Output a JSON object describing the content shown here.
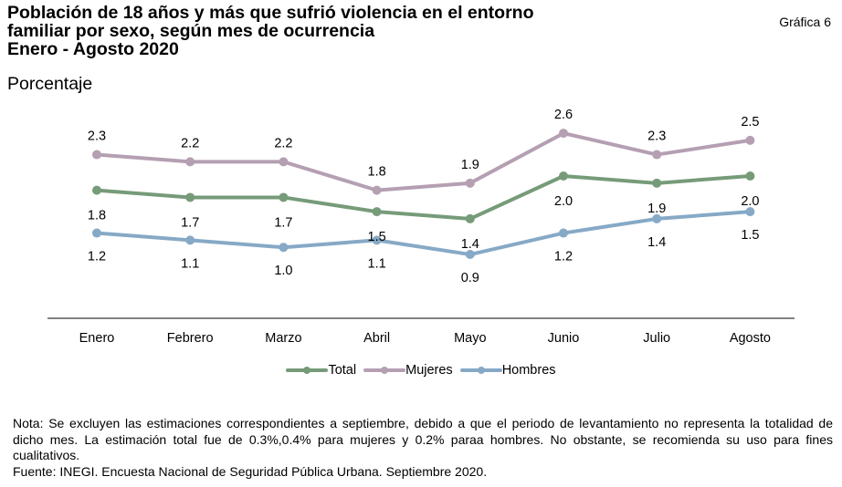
{
  "header": {
    "title_lines": [
      "Población de 18 años y más que sufrió violencia en el entorno",
      "familiar por sexo, según mes de ocurrencia",
      "Enero - Agosto 2020"
    ],
    "subtitle": "Porcentaje",
    "chart_number": "Gráfica 6"
  },
  "chart_data": {
    "type": "line",
    "title": "Población de 18 años y más que sufrió violencia en el entorno familiar por sexo, según mes de ocurrencia. Enero - Agosto 2020",
    "ylabel": "Porcentaje",
    "xlabel": "",
    "categories": [
      "Enero",
      "Febrero",
      "Marzo",
      "Abril",
      "Mayo",
      "Junio",
      "Julio",
      "Agosto"
    ],
    "series": [
      {
        "name": "Total",
        "color": "#769b79",
        "values": [
          1.8,
          1.7,
          1.7,
          1.5,
          1.4,
          2.0,
          1.9,
          2.0
        ]
      },
      {
        "name": "Mujeres",
        "color": "#b59fb2",
        "values": [
          2.3,
          2.2,
          2.2,
          1.8,
          1.9,
          2.6,
          2.3,
          2.5
        ]
      },
      {
        "name": "Hombres",
        "color": "#86a9c6",
        "values": [
          1.2,
          1.1,
          1.0,
          1.1,
          0.9,
          1.2,
          1.4,
          1.5
        ]
      }
    ],
    "data_labels": true,
    "ylim": [
      0,
      3
    ],
    "y_axis_visible": false,
    "grid": false,
    "legend_position": "bottom"
  },
  "notes": {
    "nota": "Nota: Se excluyen las estimaciones correspondientes a septiembre, debido a que el periodo de levantamiento no representa la totalidad de dicho mes. La estimación total fue de 0.3%,0.4% para mujeres y 0.2% paraa hombres. No obstante, se recomienda su uso para fines cualitativos.",
    "fuente": "Fuente: INEGI. Encuesta Nacional de Seguridad Pública Urbana. Septiembre 2020."
  }
}
